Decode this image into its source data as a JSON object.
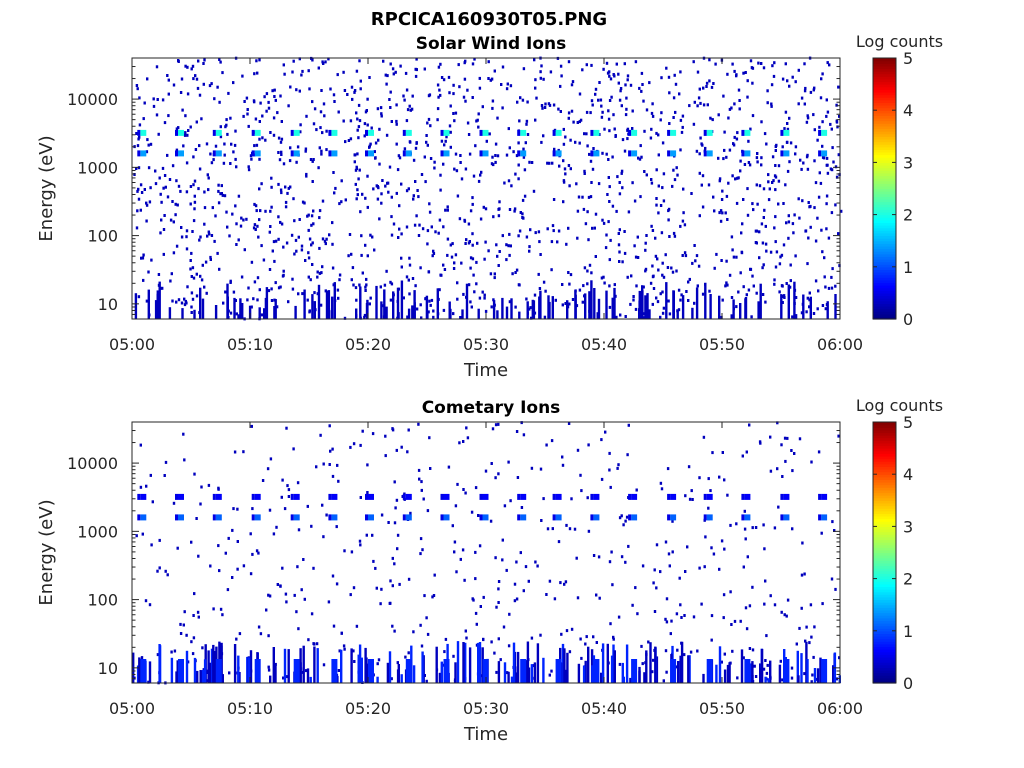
{
  "figure_title": "RPCICA160930T05.PNG",
  "chart_data": [
    {
      "type": "heatmap",
      "title": "Solar Wind Ions",
      "xlabel": "Time",
      "ylabel": "Energy (eV)",
      "x_ticks": [
        "05:00",
        "05:10",
        "05:20",
        "05:30",
        "05:40",
        "05:50",
        "06:00"
      ],
      "xlim": [
        "05:00",
        "06:00"
      ],
      "y_ticks": [
        10,
        100,
        1000,
        10000
      ],
      "ylim": [
        6,
        40000
      ],
      "y_scale": "log",
      "colorbar": {
        "label": "Log counts",
        "ticks": [
          0,
          1,
          2,
          3,
          4,
          5
        ],
        "range": [
          0,
          5
        ],
        "colormap": "jet"
      },
      "sweep_times_min": [
        1,
        4.2,
        7.4,
        10.7,
        14,
        17.2,
        20.3,
        23.5,
        26.7,
        30,
        33.2,
        36.2,
        39.4,
        42.6,
        45.9,
        49,
        52.2,
        55.5,
        58.7
      ],
      "peak_energies_ev": [
        1600,
        3200
      ],
      "peak_log_counts": [
        1.4,
        2.0
      ],
      "background_log_counts": 0.3
    },
    {
      "type": "heatmap",
      "title": "Cometary Ions",
      "xlabel": "Time",
      "ylabel": "Energy (eV)",
      "x_ticks": [
        "05:00",
        "05:10",
        "05:20",
        "05:30",
        "05:40",
        "05:50",
        "06:00"
      ],
      "xlim": [
        "05:00",
        "06:00"
      ],
      "y_ticks": [
        10,
        100,
        1000,
        10000
      ],
      "ylim": [
        6,
        40000
      ],
      "y_scale": "log",
      "colorbar": {
        "label": "Log counts",
        "ticks": [
          0,
          1,
          2,
          3,
          4,
          5
        ],
        "range": [
          0,
          5
        ],
        "colormap": "jet"
      },
      "sweep_times_min": [
        1,
        4.2,
        7.4,
        10.7,
        14,
        17.2,
        20.3,
        23.5,
        26.7,
        30,
        33.2,
        36.2,
        39.4,
        42.6,
        45.9,
        49,
        52.2,
        55.5,
        58.7
      ],
      "peak_energies_ev": [
        1600,
        3200
      ],
      "peak_log_counts": [
        1.1,
        0.6
      ],
      "low_energy_band_ev": [
        6,
        14
      ],
      "low_energy_log_counts": 0.8,
      "background_log_counts": 0.3
    }
  ]
}
